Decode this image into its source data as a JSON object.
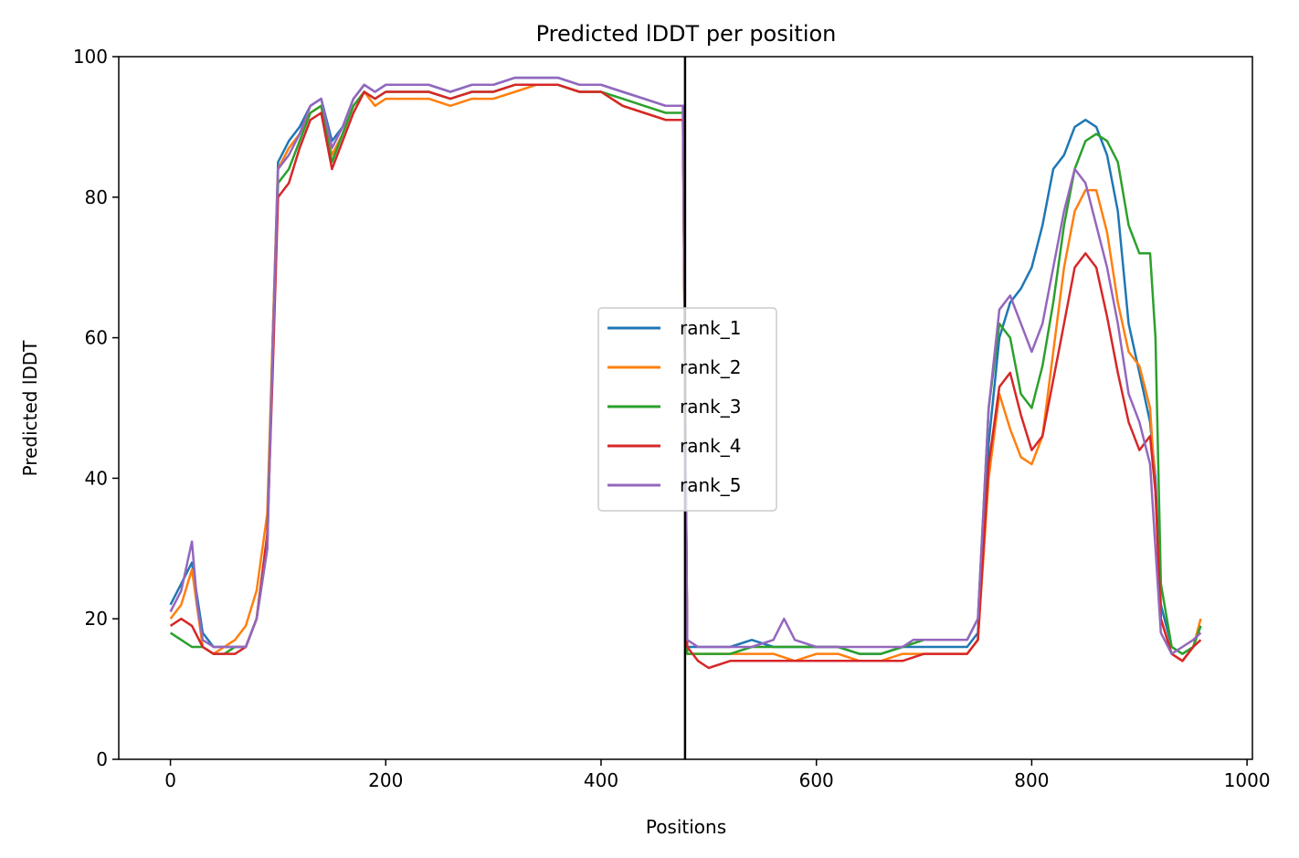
{
  "chart_data": {
    "type": "line",
    "title": "Predicted lDDT per position",
    "xlabel": "Positions",
    "ylabel": "Predicted lDDT",
    "xlim": [
      -48,
      1005
    ],
    "ylim": [
      0,
      100
    ],
    "xticks": [
      0,
      200,
      400,
      600,
      800,
      1000
    ],
    "yticks": [
      0,
      20,
      40,
      60,
      80,
      100
    ],
    "grid": false,
    "legend_placement": "center",
    "chain_break_x": 478,
    "series": [
      {
        "name": "rank_1",
        "color": "#1f77b4",
        "x": [
          0,
          10,
          20,
          30,
          40,
          50,
          60,
          70,
          80,
          90,
          95,
          100,
          110,
          120,
          130,
          140,
          150,
          160,
          170,
          180,
          190,
          200,
          220,
          240,
          260,
          280,
          300,
          320,
          340,
          360,
          380,
          400,
          420,
          440,
          460,
          476,
          480,
          490,
          500,
          520,
          540,
          560,
          580,
          600,
          620,
          640,
          660,
          680,
          700,
          720,
          740,
          750,
          760,
          770,
          780,
          790,
          800,
          810,
          820,
          830,
          840,
          850,
          860,
          870,
          880,
          890,
          900,
          910,
          915,
          920,
          930,
          940,
          950,
          957
        ],
        "values": [
          22,
          25,
          28,
          18,
          16,
          16,
          16,
          16,
          20,
          30,
          60,
          85,
          88,
          90,
          93,
          94,
          88,
          90,
          94,
          96,
          95,
          96,
          96,
          96,
          95,
          96,
          96,
          97,
          97,
          97,
          96,
          96,
          95,
          94,
          93,
          93,
          16,
          16,
          16,
          16,
          17,
          16,
          16,
          16,
          16,
          15,
          15,
          16,
          16,
          16,
          16,
          18,
          45,
          60,
          65,
          67,
          70,
          76,
          84,
          86,
          90,
          91,
          90,
          86,
          78,
          62,
          55,
          48,
          40,
          22,
          16,
          15,
          16,
          19
        ]
      },
      {
        "name": "rank_2",
        "color": "#ff7f0e",
        "x": [
          0,
          10,
          20,
          30,
          40,
          50,
          60,
          70,
          80,
          90,
          95,
          100,
          110,
          120,
          130,
          140,
          150,
          160,
          170,
          180,
          190,
          200,
          220,
          240,
          260,
          280,
          300,
          320,
          340,
          360,
          380,
          400,
          420,
          440,
          460,
          476,
          480,
          490,
          500,
          520,
          540,
          560,
          580,
          600,
          620,
          640,
          660,
          680,
          700,
          720,
          740,
          750,
          760,
          770,
          780,
          790,
          800,
          810,
          820,
          830,
          840,
          850,
          860,
          870,
          880,
          890,
          900,
          910,
          915,
          920,
          930,
          940,
          950,
          957
        ],
        "values": [
          20,
          22,
          27,
          16,
          15,
          16,
          17,
          19,
          24,
          35,
          60,
          84,
          87,
          89,
          92,
          93,
          86,
          89,
          93,
          95,
          93,
          94,
          94,
          94,
          93,
          94,
          94,
          95,
          96,
          96,
          95,
          95,
          93,
          92,
          91,
          91,
          15,
          15,
          15,
          15,
          15,
          15,
          14,
          15,
          15,
          14,
          14,
          15,
          15,
          15,
          15,
          17,
          40,
          52,
          47,
          43,
          42,
          46,
          58,
          70,
          78,
          81,
          81,
          75,
          65,
          58,
          56,
          50,
          38,
          20,
          15,
          14,
          16,
          20
        ]
      },
      {
        "name": "rank_3",
        "color": "#2ca02c",
        "x": [
          0,
          10,
          20,
          30,
          40,
          50,
          60,
          70,
          80,
          90,
          95,
          100,
          110,
          120,
          130,
          140,
          150,
          160,
          170,
          180,
          190,
          200,
          220,
          240,
          260,
          280,
          300,
          320,
          340,
          360,
          380,
          400,
          420,
          440,
          460,
          476,
          480,
          490,
          500,
          520,
          540,
          560,
          580,
          600,
          620,
          640,
          660,
          680,
          700,
          720,
          740,
          750,
          760,
          770,
          780,
          790,
          800,
          810,
          820,
          830,
          840,
          850,
          860,
          870,
          880,
          890,
          900,
          910,
          915,
          920,
          930,
          940,
          950,
          957
        ],
        "values": [
          18,
          17,
          16,
          16,
          15,
          15,
          16,
          16,
          20,
          32,
          58,
          82,
          84,
          88,
          92,
          93,
          85,
          89,
          93,
          95,
          94,
          95,
          95,
          95,
          94,
          95,
          95,
          96,
          96,
          96,
          95,
          95,
          94,
          93,
          92,
          92,
          15,
          15,
          15,
          15,
          16,
          16,
          16,
          16,
          16,
          15,
          15,
          16,
          17,
          17,
          17,
          20,
          50,
          62,
          60,
          52,
          50,
          56,
          65,
          76,
          84,
          88,
          89,
          88,
          85,
          76,
          72,
          72,
          60,
          25,
          16,
          15,
          16,
          19
        ]
      },
      {
        "name": "rank_4",
        "color": "#d62728",
        "x": [
          0,
          10,
          20,
          30,
          40,
          50,
          60,
          70,
          80,
          90,
          95,
          100,
          110,
          120,
          130,
          140,
          150,
          160,
          170,
          180,
          190,
          200,
          220,
          240,
          260,
          280,
          300,
          320,
          340,
          360,
          380,
          400,
          420,
          440,
          460,
          476,
          480,
          490,
          500,
          520,
          540,
          560,
          580,
          600,
          620,
          640,
          660,
          680,
          700,
          720,
          740,
          750,
          760,
          770,
          780,
          790,
          800,
          810,
          820,
          830,
          840,
          850,
          860,
          870,
          880,
          890,
          900,
          910,
          915,
          920,
          930,
          940,
          950,
          957
        ],
        "values": [
          19,
          20,
          19,
          16,
          15,
          15,
          15,
          16,
          20,
          32,
          55,
          80,
          82,
          87,
          91,
          92,
          84,
          88,
          92,
          95,
          94,
          95,
          95,
          95,
          94,
          95,
          95,
          96,
          96,
          96,
          95,
          95,
          93,
          92,
          91,
          91,
          16,
          14,
          13,
          14,
          14,
          14,
          14,
          14,
          14,
          14,
          14,
          14,
          15,
          15,
          15,
          17,
          42,
          53,
          55,
          49,
          44,
          46,
          54,
          62,
          70,
          72,
          70,
          63,
          55,
          48,
          44,
          46,
          38,
          20,
          15,
          14,
          16,
          17
        ]
      },
      {
        "name": "rank_5",
        "color": "#9467bd",
        "x": [
          0,
          10,
          20,
          25,
          30,
          40,
          50,
          60,
          70,
          80,
          90,
          95,
          100,
          110,
          120,
          130,
          140,
          150,
          160,
          170,
          180,
          190,
          200,
          220,
          240,
          260,
          280,
          300,
          320,
          340,
          360,
          380,
          400,
          420,
          440,
          460,
          476,
          480,
          490,
          500,
          520,
          540,
          560,
          570,
          580,
          600,
          620,
          640,
          660,
          680,
          690,
          700,
          720,
          740,
          750,
          760,
          770,
          780,
          790,
          800,
          810,
          820,
          830,
          840,
          850,
          860,
          870,
          880,
          890,
          900,
          910,
          915,
          920,
          930,
          940,
          950,
          957
        ],
        "values": [
          21,
          24,
          31,
          22,
          17,
          16,
          16,
          16,
          16,
          20,
          30,
          58,
          84,
          86,
          89,
          93,
          94,
          87,
          90,
          94,
          96,
          95,
          96,
          96,
          96,
          95,
          96,
          96,
          97,
          97,
          97,
          96,
          96,
          95,
          94,
          93,
          93,
          17,
          16,
          16,
          16,
          16,
          17,
          20,
          17,
          16,
          16,
          16,
          16,
          16,
          17,
          17,
          17,
          17,
          20,
          50,
          64,
          66,
          62,
          58,
          62,
          70,
          78,
          84,
          82,
          76,
          70,
          62,
          52,
          48,
          42,
          30,
          18,
          15,
          16,
          17,
          18
        ]
      }
    ]
  }
}
